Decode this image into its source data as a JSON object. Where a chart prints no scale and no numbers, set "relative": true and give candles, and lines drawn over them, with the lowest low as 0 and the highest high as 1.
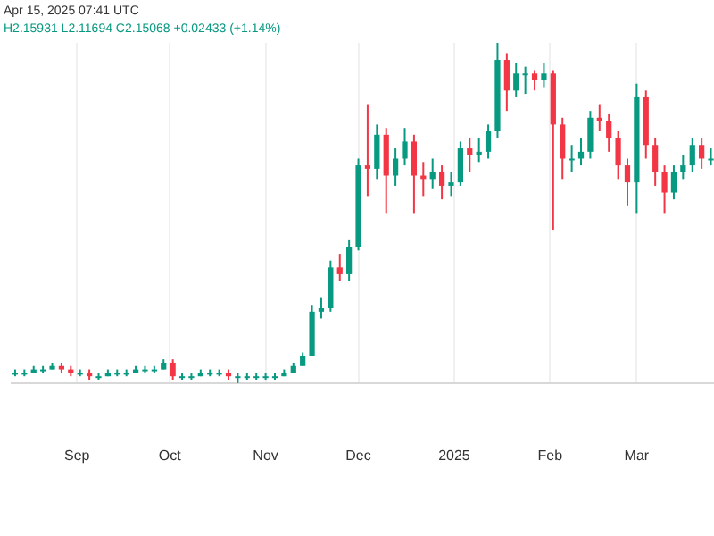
{
  "chart_data": {
    "type": "candlestick",
    "relative": true,
    "grid": "x",
    "annotations": [
      "Apr 15, 2025 07:41 UTC",
      "H2.15931 L2.11694 C2.15068 +0.02433 (+1.14%)"
    ],
    "xlim": [
      "2024-08-11",
      "2025-03-26"
    ],
    "xticks": [
      {
        "value": "2024-09-01",
        "label": "Sep"
      },
      {
        "value": "2024-10-01",
        "label": "Oct"
      },
      {
        "value": "2024-11-01",
        "label": "Nov"
      },
      {
        "value": "2024-12-01",
        "label": "Dec"
      },
      {
        "value": "2025-01-01",
        "label": "2025"
      },
      {
        "value": "2025-02-01",
        "label": "Feb"
      },
      {
        "value": "2025-03-01",
        "label": "Mar"
      }
    ],
    "x": [
      "2024-08-12",
      "2024-08-15",
      "2024-08-18",
      "2024-08-21",
      "2024-08-24",
      "2024-08-27",
      "2024-08-30",
      "2024-09-02",
      "2024-09-05",
      "2024-09-08",
      "2024-09-11",
      "2024-09-14",
      "2024-09-17",
      "2024-09-20",
      "2024-09-23",
      "2024-09-26",
      "2024-09-29",
      "2024-10-02",
      "2024-10-05",
      "2024-10-08",
      "2024-10-11",
      "2024-10-14",
      "2024-10-17",
      "2024-10-20",
      "2024-10-23",
      "2024-10-26",
      "2024-10-29",
      "2024-11-01",
      "2024-11-04",
      "2024-11-07",
      "2024-11-10",
      "2024-11-13",
      "2024-11-16",
      "2024-11-19",
      "2024-11-22",
      "2024-11-25",
      "2024-11-28",
      "2024-12-01",
      "2024-12-04",
      "2024-12-07",
      "2024-12-10",
      "2024-12-13",
      "2024-12-16",
      "2024-12-19",
      "2024-12-22",
      "2024-12-25",
      "2024-12-28",
      "2024-12-31",
      "2025-01-03",
      "2025-01-06",
      "2025-01-09",
      "2025-01-12",
      "2025-01-15",
      "2025-01-18",
      "2025-01-21",
      "2025-01-24",
      "2025-01-27",
      "2025-01-30",
      "2025-02-02",
      "2025-02-05",
      "2025-02-08",
      "2025-02-11",
      "2025-02-14",
      "2025-02-17",
      "2025-02-20",
      "2025-02-23",
      "2025-02-26",
      "2025-03-01",
      "2025-03-04",
      "2025-03-07",
      "2025-03-10",
      "2025-03-13",
      "2025-03-16",
      "2025-03-19",
      "2025-03-22",
      "2025-03-25"
    ],
    "ohlc": [
      [
        0.03,
        0.04,
        0.02,
        0.03
      ],
      [
        0.03,
        0.04,
        0.02,
        0.03
      ],
      [
        0.03,
        0.05,
        0.03,
        0.04
      ],
      [
        0.04,
        0.05,
        0.03,
        0.04
      ],
      [
        0.04,
        0.06,
        0.04,
        0.05
      ],
      [
        0.05,
        0.06,
        0.03,
        0.04
      ],
      [
        0.04,
        0.05,
        0.02,
        0.03
      ],
      [
        0.03,
        0.04,
        0.02,
        0.03
      ],
      [
        0.03,
        0.04,
        0.01,
        0.02
      ],
      [
        0.02,
        0.03,
        0.01,
        0.02
      ],
      [
        0.02,
        0.04,
        0.02,
        0.03
      ],
      [
        0.03,
        0.04,
        0.02,
        0.03
      ],
      [
        0.03,
        0.04,
        0.02,
        0.03
      ],
      [
        0.03,
        0.05,
        0.03,
        0.04
      ],
      [
        0.04,
        0.05,
        0.03,
        0.04
      ],
      [
        0.04,
        0.05,
        0.03,
        0.04
      ],
      [
        0.04,
        0.07,
        0.04,
        0.06
      ],
      [
        0.06,
        0.07,
        0.01,
        0.02
      ],
      [
        0.02,
        0.03,
        0.01,
        0.02
      ],
      [
        0.02,
        0.03,
        0.01,
        0.02
      ],
      [
        0.02,
        0.04,
        0.02,
        0.03
      ],
      [
        0.03,
        0.04,
        0.02,
        0.03
      ],
      [
        0.03,
        0.04,
        0.02,
        0.03
      ],
      [
        0.03,
        0.04,
        0.01,
        0.02
      ],
      [
        0.02,
        0.03,
        0,
        0.02
      ],
      [
        0.02,
        0.03,
        0.01,
        0.02
      ],
      [
        0.02,
        0.03,
        0.01,
        0.02
      ],
      [
        0.02,
        0.03,
        0.01,
        0.02
      ],
      [
        0.02,
        0.03,
        0.01,
        0.02
      ],
      [
        0.02,
        0.04,
        0.02,
        0.03
      ],
      [
        0.03,
        0.06,
        0.03,
        0.05
      ],
      [
        0.05,
        0.09,
        0.05,
        0.08
      ],
      [
        0.08,
        0.23,
        0.08,
        0.21
      ],
      [
        0.21,
        0.25,
        0.19,
        0.22
      ],
      [
        0.22,
        0.36,
        0.21,
        0.34
      ],
      [
        0.34,
        0.38,
        0.3,
        0.32
      ],
      [
        0.32,
        0.42,
        0.3,
        0.4
      ],
      [
        0.4,
        0.66,
        0.39,
        0.64
      ],
      [
        0.64,
        0.82,
        0.55,
        0.63
      ],
      [
        0.63,
        0.76,
        0.6,
        0.73
      ],
      [
        0.73,
        0.75,
        0.5,
        0.61
      ],
      [
        0.61,
        0.69,
        0.58,
        0.66
      ],
      [
        0.66,
        0.75,
        0.64,
        0.71
      ],
      [
        0.71,
        0.73,
        0.5,
        0.61
      ],
      [
        0.61,
        0.65,
        0.55,
        0.6
      ],
      [
        0.6,
        0.66,
        0.57,
        0.62
      ],
      [
        0.62,
        0.64,
        0.54,
        0.58
      ],
      [
        0.58,
        0.62,
        0.55,
        0.59
      ],
      [
        0.59,
        0.71,
        0.58,
        0.69
      ],
      [
        0.69,
        0.72,
        0.62,
        0.67
      ],
      [
        0.67,
        0.72,
        0.65,
        0.68
      ],
      [
        0.68,
        0.76,
        0.66,
        0.74
      ],
      [
        0.74,
        1,
        0.72,
        0.95
      ],
      [
        0.95,
        0.97,
        0.8,
        0.86
      ],
      [
        0.86,
        0.94,
        0.84,
        0.91
      ],
      [
        0.91,
        0.93,
        0.85,
        0.91
      ],
      [
        0.91,
        0.92,
        0.86,
        0.89
      ],
      [
        0.89,
        0.94,
        0.87,
        0.91
      ],
      [
        0.91,
        0.92,
        0.45,
        0.76
      ],
      [
        0.76,
        0.78,
        0.6,
        0.66
      ],
      [
        0.66,
        0.7,
        0.62,
        0.66
      ],
      [
        0.66,
        0.72,
        0.64,
        0.68
      ],
      [
        0.68,
        0.8,
        0.66,
        0.78
      ],
      [
        0.78,
        0.82,
        0.74,
        0.77
      ],
      [
        0.77,
        0.79,
        0.68,
        0.72
      ],
      [
        0.72,
        0.74,
        0.6,
        0.64
      ],
      [
        0.64,
        0.66,
        0.52,
        0.59
      ],
      [
        0.59,
        0.88,
        0.5,
        0.84
      ],
      [
        0.84,
        0.86,
        0.66,
        0.7
      ],
      [
        0.7,
        0.72,
        0.58,
        0.62
      ],
      [
        0.62,
        0.64,
        0.5,
        0.56
      ],
      [
        0.56,
        0.64,
        0.54,
        0.62
      ],
      [
        0.62,
        0.67,
        0.6,
        0.64
      ],
      [
        0.64,
        0.72,
        0.62,
        0.7
      ],
      [
        0.7,
        0.72,
        0.63,
        0.66
      ],
      [
        0.66,
        0.69,
        0.64,
        0.66
      ]
    ],
    "colors": [
      "#089981",
      "#089981",
      "#089981",
      "#089981",
      "#089981",
      "#f23645",
      "#f23645",
      "#089981",
      "#f23645",
      "#089981",
      "#089981",
      "#089981",
      "#089981",
      "#089981",
      "#089981",
      "#089981",
      "#089981",
      "#f23645",
      "#089981",
      "#089981",
      "#089981",
      "#089981",
      "#089981",
      "#f23645",
      "#089981",
      "#089981",
      "#089981",
      "#089981",
      "#089981",
      "#089981",
      "#089981",
      "#089981",
      "#089981",
      "#089981",
      "#089981",
      "#f23645",
      "#089981",
      "#089981",
      "#f23645",
      "#089981",
      "#f23645",
      "#089981",
      "#089981",
      "#f23645",
      "#f23645",
      "#089981",
      "#f23645",
      "#089981",
      "#089981",
      "#f23645",
      "#089981",
      "#089981",
      "#089981",
      "#f23645",
      "#089981",
      "#089981",
      "#f23645",
      "#089981",
      "#f23645",
      "#f23645",
      "#089981",
      "#089981",
      "#089981",
      "#f23645",
      "#f23645",
      "#f23645",
      "#f23645",
      "#089981",
      "#f23645",
      "#f23645",
      "#f23645",
      "#089981",
      "#089981",
      "#089981",
      "#f23645",
      "#089981"
    ]
  }
}
